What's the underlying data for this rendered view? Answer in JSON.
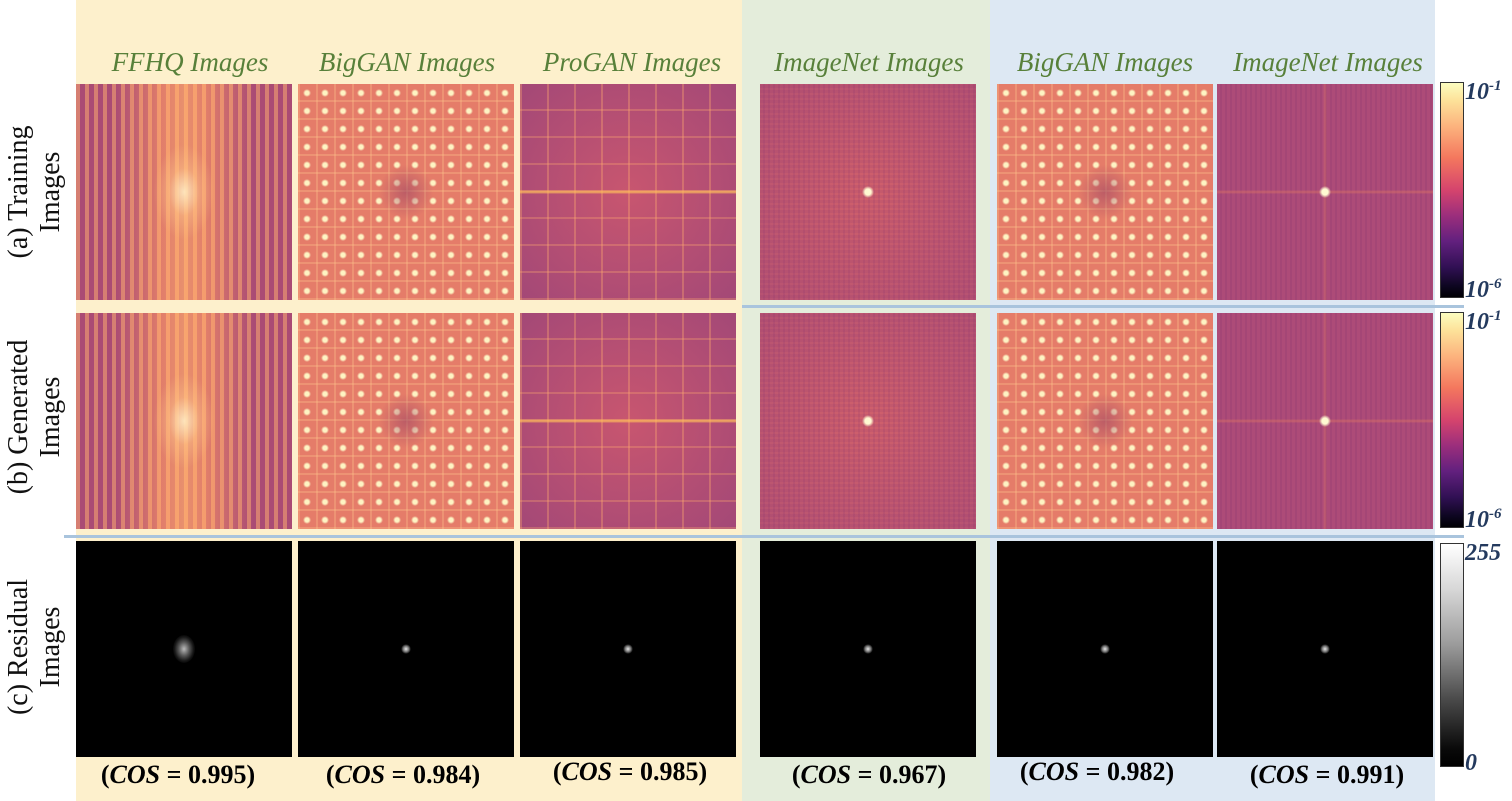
{
  "column_titles": [
    "FFHQ Images",
    "BigGAN Images",
    "ProGAN Images",
    "ImageNet Images",
    "BigGAN Images",
    "ImageNet Images"
  ],
  "row_labels": {
    "a_line1": "(a) Training",
    "a_line2": "Images",
    "b_line1": "(b) Generated",
    "b_line2": "Images",
    "c_line1": "(c) Residual",
    "c_line2": "Images"
  },
  "cos_label": "COS",
  "cos_values": [
    "(COS = 0.995)",
    "(COS = 0.984)",
    "(COS = 0.985)",
    "(COS = 0.967)",
    "(COS = 0.982)",
    "(COS = 0.991)"
  ],
  "cos_numbers": [
    "0.995",
    "0.984",
    "0.985",
    "0.967",
    "0.982",
    "0.991"
  ],
  "colorbars": {
    "spectrum_top": "10",
    "spectrum_top_exp": "-1",
    "spectrum_bottom": "10",
    "spectrum_bottom_exp": "-6",
    "residual_top": "255",
    "residual_bottom": "0"
  },
  "colors": {
    "panel_yellow": "#fdf0cc",
    "panel_green": "#e4eddb",
    "panel_blue": "#dde8f3",
    "title_green": "#58803a",
    "colorbar_label": "#243a5e"
  }
}
